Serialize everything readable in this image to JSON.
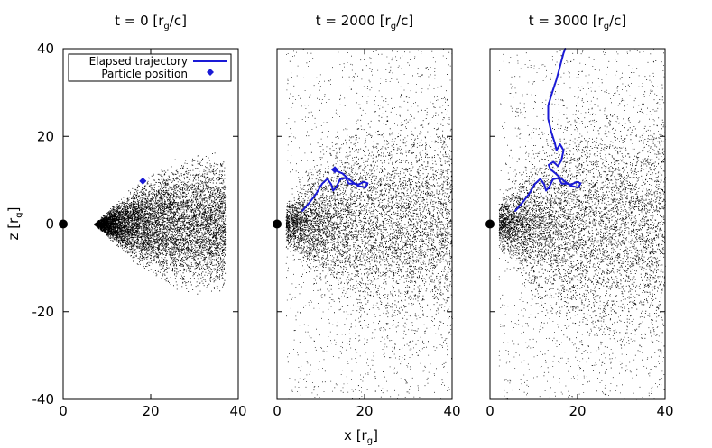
{
  "chart_data": {
    "type": "scatter",
    "xlabel": "x [r",
    "xlabel_sub": "g",
    "xlabel_close": "]",
    "ylabel": "z [r",
    "ylabel_sub": "g",
    "ylabel_close": "]",
    "xlim": [
      0,
      40
    ],
    "ylim": [
      -40,
      40
    ],
    "xticks": [
      0,
      20,
      40
    ],
    "yticks": [
      -40,
      -20,
      0,
      20,
      40
    ],
    "legend": {
      "placement": "top-left",
      "entries": [
        {
          "label": "Elapsed trajectory",
          "kind": "line",
          "color": "#1a1ad6"
        },
        {
          "label": "Particle position",
          "kind": "diamond",
          "color": "#1a1ad6"
        }
      ]
    },
    "colors": {
      "trajectory": "#1a1ad6",
      "particles": "#000000",
      "hole": "#000000"
    },
    "panels": [
      {
        "title_prefix": "t = ",
        "time": "0",
        "title_unit": "[r",
        "title_sub": "g",
        "title_close": "/c]",
        "particle_position": {
          "x": 18.2,
          "z": 9.8
        },
        "trajectory": []
      },
      {
        "title_prefix": "t = ",
        "time": "2000",
        "title_unit": "[r",
        "title_sub": "g",
        "title_close": "/c]",
        "particle_position": {
          "x": 13.2,
          "z": 12.4
        },
        "trajectory": [
          {
            "x": 5.8,
            "z": 3.0
          },
          {
            "x": 7.5,
            "z": 5.0
          },
          {
            "x": 9.0,
            "z": 7.0
          },
          {
            "x": 10.3,
            "z": 9.2
          },
          {
            "x": 11.5,
            "z": 10.3
          },
          {
            "x": 12.4,
            "z": 9.0
          },
          {
            "x": 12.8,
            "z": 7.6
          },
          {
            "x": 13.5,
            "z": 8.4
          },
          {
            "x": 14.4,
            "z": 10.2
          },
          {
            "x": 15.7,
            "z": 10.5
          },
          {
            "x": 16.4,
            "z": 9.2
          },
          {
            "x": 17.5,
            "z": 9.2
          },
          {
            "x": 18.6,
            "z": 9.0
          },
          {
            "x": 19.8,
            "z": 9.6
          },
          {
            "x": 20.7,
            "z": 9.3
          },
          {
            "x": 20.2,
            "z": 8.3
          },
          {
            "x": 18.5,
            "z": 8.7
          },
          {
            "x": 17.2,
            "z": 9.6
          },
          {
            "x": 16.0,
            "z": 10.6
          },
          {
            "x": 15.0,
            "z": 11.5
          },
          {
            "x": 13.8,
            "z": 12.0
          }
        ]
      },
      {
        "title_prefix": "t = ",
        "time": "3000",
        "title_unit": "[r",
        "title_sub": "g",
        "title_close": "/c]",
        "particle_position": null,
        "trajectory": [
          {
            "x": 5.8,
            "z": 3.0
          },
          {
            "x": 7.5,
            "z": 5.0
          },
          {
            "x": 9.0,
            "z": 7.0
          },
          {
            "x": 10.3,
            "z": 9.2
          },
          {
            "x": 11.5,
            "z": 10.3
          },
          {
            "x": 12.4,
            "z": 9.0
          },
          {
            "x": 12.8,
            "z": 7.6
          },
          {
            "x": 13.5,
            "z": 8.4
          },
          {
            "x": 14.4,
            "z": 10.2
          },
          {
            "x": 15.7,
            "z": 10.5
          },
          {
            "x": 16.4,
            "z": 9.2
          },
          {
            "x": 17.5,
            "z": 9.2
          },
          {
            "x": 18.6,
            "z": 9.0
          },
          {
            "x": 19.8,
            "z": 9.6
          },
          {
            "x": 20.7,
            "z": 9.3
          },
          {
            "x": 20.2,
            "z": 8.3
          },
          {
            "x": 18.5,
            "z": 8.7
          },
          {
            "x": 17.2,
            "z": 9.6
          },
          {
            "x": 16.0,
            "z": 10.6
          },
          {
            "x": 15.0,
            "z": 11.5
          },
          {
            "x": 13.8,
            "z": 12.5
          },
          {
            "x": 13.4,
            "z": 13.5
          },
          {
            "x": 14.5,
            "z": 14.2
          },
          {
            "x": 15.5,
            "z": 13.2
          },
          {
            "x": 16.3,
            "z": 14.5
          },
          {
            "x": 16.8,
            "z": 16.8
          },
          {
            "x": 16.0,
            "z": 18.2
          },
          {
            "x": 15.2,
            "z": 16.8
          },
          {
            "x": 14.8,
            "z": 18.5
          },
          {
            "x": 14.0,
            "z": 21.0
          },
          {
            "x": 13.3,
            "z": 24.0
          },
          {
            "x": 13.3,
            "z": 27.0
          },
          {
            "x": 14.2,
            "z": 30.0
          },
          {
            "x": 15.2,
            "z": 33.0
          },
          {
            "x": 16.0,
            "z": 36.0
          },
          {
            "x": 16.8,
            "z": 39.0
          },
          {
            "x": 17.2,
            "z": 40.0
          }
        ]
      }
    ]
  }
}
